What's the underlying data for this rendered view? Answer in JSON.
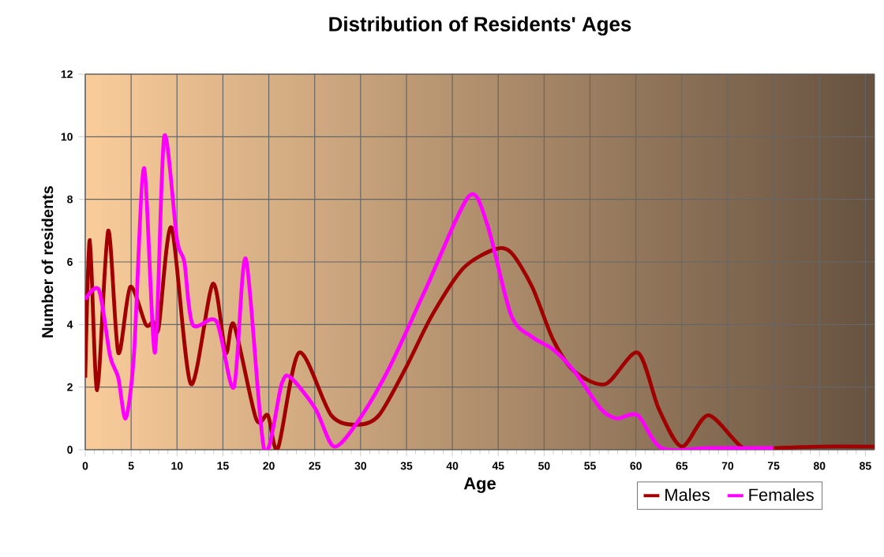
{
  "chart_data": {
    "type": "line",
    "title": "Distribution of Residents' Ages",
    "xlabel": "Age",
    "ylabel": "Number of residents",
    "xlim": [
      0,
      86
    ],
    "xticks": [
      0,
      5,
      10,
      15,
      20,
      25,
      30,
      35,
      40,
      45,
      50,
      55,
      60,
      65,
      70,
      75,
      80,
      85
    ],
    "ylim": [
      0,
      12
    ],
    "yticks": [
      0,
      2,
      4,
      6,
      8,
      10,
      12
    ],
    "grid": true,
    "legend": "bottom right",
    "marker": "none",
    "line_style": "solid",
    "series": [
      {
        "name": "Males",
        "color": "#a00000",
        "x": [
          0,
          0.5,
          1.3,
          2.5,
          3.6,
          4.9,
          6.6,
          7.4,
          8.0,
          9.4,
          11.5,
          13.9,
          15.3,
          16.2,
          18.6,
          19.9,
          21.0,
          23.3,
          26.8,
          29.7,
          32.0,
          34.9,
          37.8,
          41.2,
          44.6,
          46.4,
          48.7,
          51.0,
          53.3,
          56.7,
          60.2,
          62.5,
          65.0,
          67.9,
          71.7,
          75,
          80,
          86
        ],
        "values": [
          2.3,
          6.7,
          1.9,
          7.0,
          3.1,
          5.2,
          4.0,
          4.1,
          3.9,
          7.1,
          2.1,
          5.3,
          3.1,
          4.0,
          1.0,
          1.1,
          0.05,
          3.1,
          1.1,
          0.8,
          1.1,
          2.6,
          4.3,
          5.8,
          6.4,
          6.3,
          5.2,
          3.5,
          2.5,
          2.1,
          3.1,
          1.3,
          0.1,
          1.1,
          0.05,
          0.05,
          0.1,
          0.1
        ]
      },
      {
        "name": "Females",
        "color": "#ff00ff",
        "x": [
          0,
          1.5,
          2.7,
          3.6,
          4.4,
          5.3,
          6.4,
          7.6,
          8.6,
          10.0,
          10.8,
          11.7,
          14.3,
          16.2,
          17.5,
          19.5,
          21.4,
          22.4,
          25.1,
          27.1,
          29.7,
          33.1,
          37.2,
          41.8,
          43.8,
          46.4,
          48.7,
          51.0,
          53.3,
          56.2,
          57.9,
          60.2,
          62.8,
          68,
          75
        ],
        "values": [
          4.8,
          5.1,
          3.0,
          2.3,
          1.0,
          3.0,
          9.0,
          3.1,
          10.0,
          6.7,
          6.0,
          4.0,
          4.1,
          2.0,
          6.1,
          0,
          2.1,
          2.3,
          1.3,
          0.1,
          0.9,
          2.6,
          5.2,
          8.1,
          7.2,
          4.3,
          3.6,
          3.2,
          2.5,
          1.3,
          1.0,
          1.1,
          0.05,
          0.05,
          0.05
        ]
      }
    ]
  }
}
